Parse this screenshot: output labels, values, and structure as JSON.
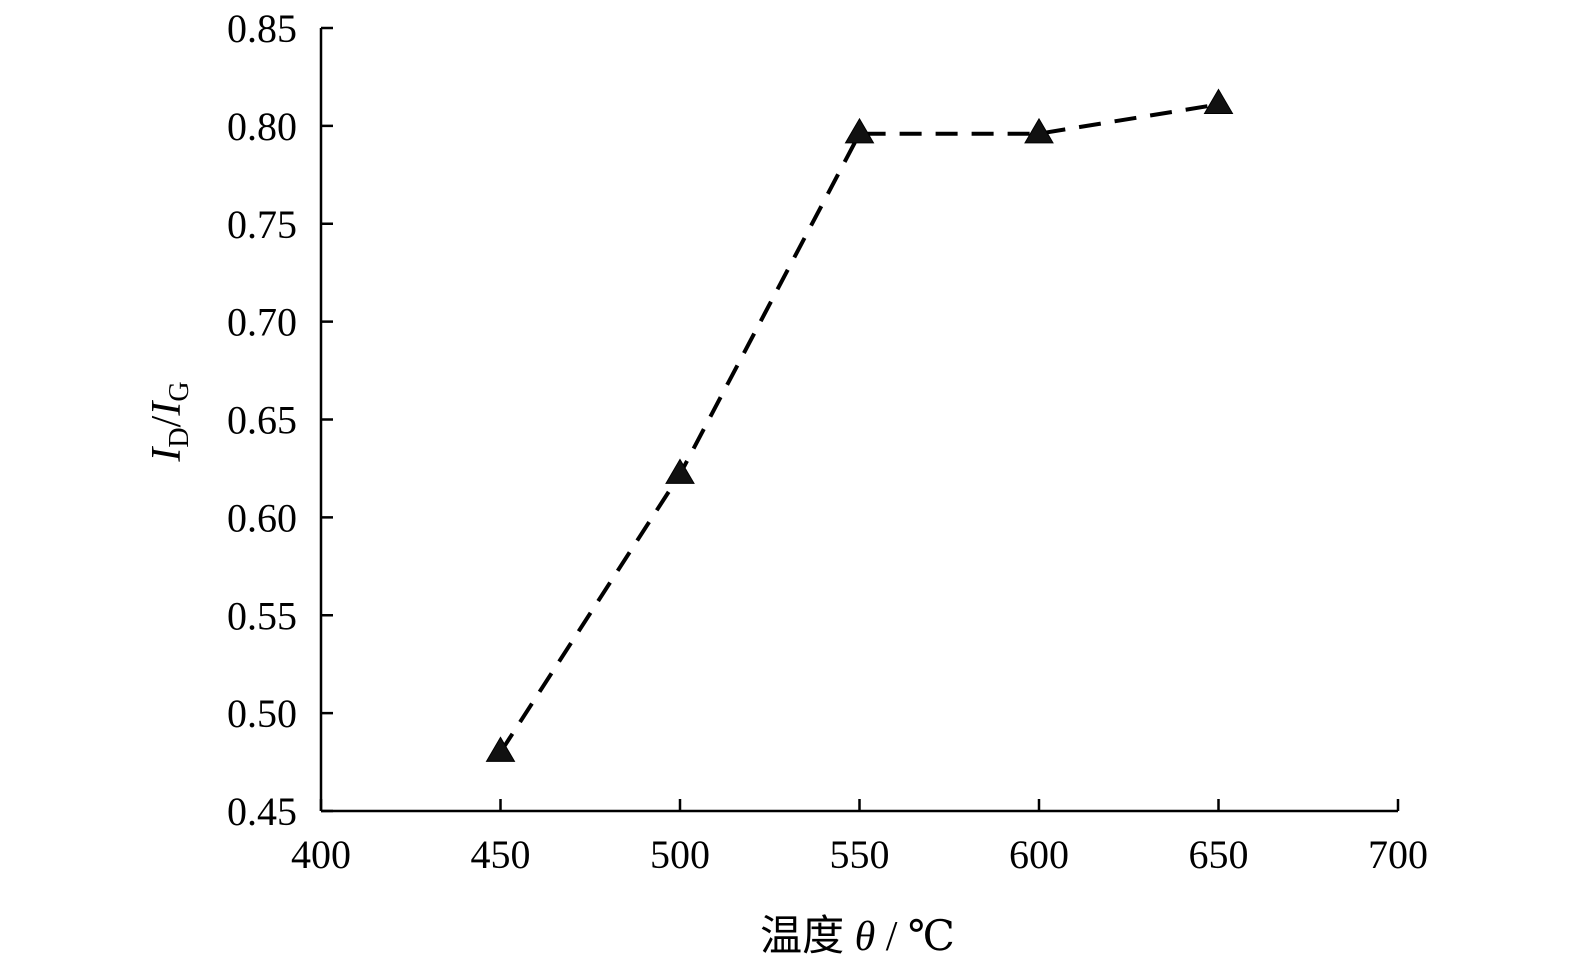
{
  "chart_data": {
    "type": "line",
    "title": "",
    "xlabel": {
      "prefix": "温度 ",
      "symbol": "θ",
      "suffix": " / ℃"
    },
    "ylabel": {
      "numerator": "I",
      "numerator_sub": "D",
      "separator": "/",
      "denominator": "I",
      "denominator_sub": "G"
    },
    "xlim": [
      400,
      700
    ],
    "ylim": [
      0.45,
      0.85
    ],
    "xticks": [
      "400",
      "450",
      "500",
      "550",
      "600",
      "650",
      "700"
    ],
    "yticks": [
      "0.45",
      "0.50",
      "0.55",
      "0.60",
      "0.65",
      "0.70",
      "0.75",
      "0.80",
      "0.85"
    ],
    "grid": false,
    "marker": "triangle",
    "line_style": "dashed",
    "series": [
      {
        "x": [
          450,
          500,
          550,
          600,
          650
        ],
        "y": [
          0.48,
          0.622,
          0.796,
          0.796,
          0.811
        ]
      }
    ],
    "colors": {
      "line": "#000000",
      "marker": "#111111",
      "axis": "#000000"
    }
  }
}
